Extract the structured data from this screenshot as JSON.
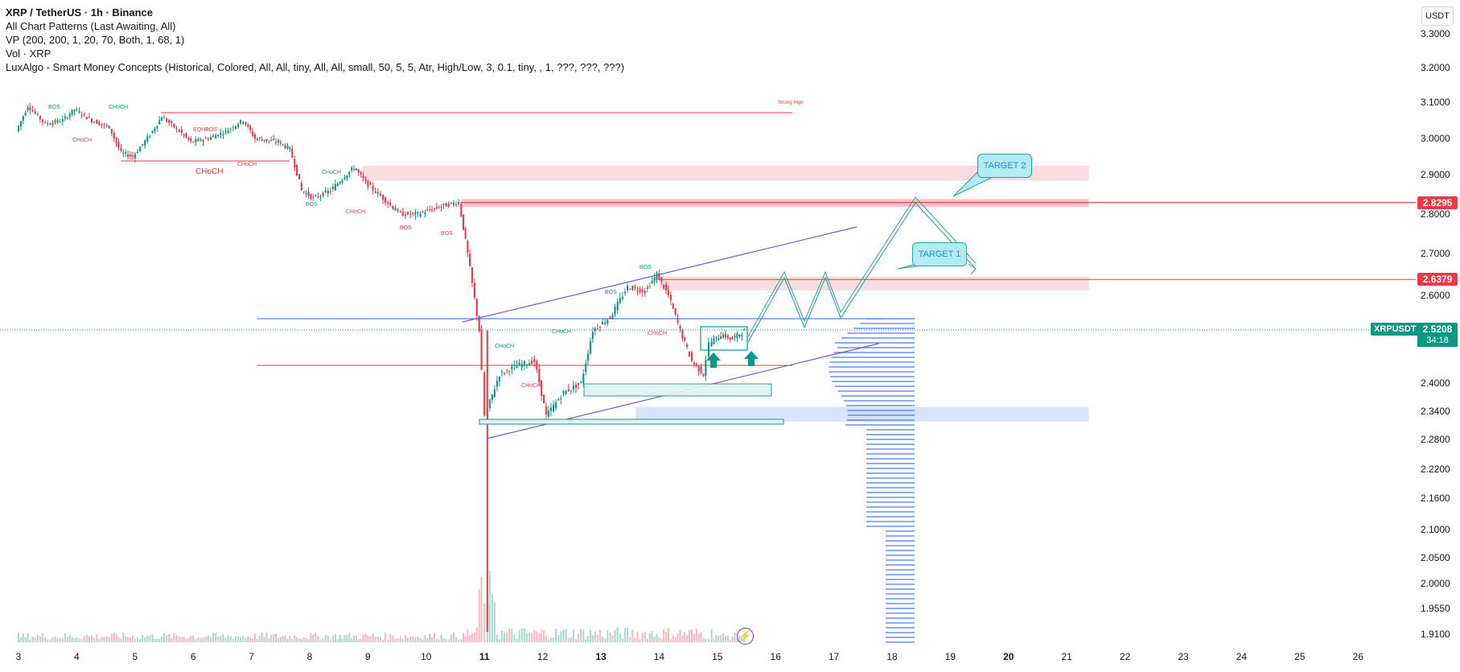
{
  "legend": {
    "title": "XRP / TetherUS · 1h · Binance",
    "line2": "All Chart Patterns (Last Awaiting, All)",
    "line3": "VP (200, 200, 1, 20, 70, Both, 1, 68, 1)",
    "line4": "Vol · XRP",
    "line5": "LuxAlgo - Smart Money Concepts (Historical, Colored, All, All, tiny, All, All, small, 50, 5, 5, Atr, High/Low, 3, 0.1, tiny, , 1, ???, ???, ???)"
  },
  "currency_button": "USDT",
  "tags": {
    "target2_price": "2.8295",
    "target1_price": "2.6379",
    "symbol": "XRPUSDT",
    "last_price": "2.5208",
    "countdown": "34:18"
  },
  "targets": {
    "t1": "TARGET 1",
    "t2": "TARGET 2"
  },
  "smc_labels": {
    "bos": "BOS",
    "choch": "CHoCH",
    "eqh_bos": "EQHBOS",
    "strong_high": "Strong High",
    "choch_big": "CHoCH"
  },
  "lightning_icon": "lightning-icon",
  "colors": {
    "up": "#089981",
    "down": "#f23645",
    "zone_red": "#f8d7da",
    "zone_blue": "#cfe0fb",
    "vp_blue": "#2962ff",
    "pattern_purple": "#7e57c2",
    "projection": "#26a69a"
  },
  "chart_data": {
    "type": "candlestick",
    "symbol": "XRPUSDT",
    "timeframe": "1h",
    "y_axis_ticks": [
      "3.3000",
      "3.2000",
      "3.1000",
      "3.0000",
      "2.9000",
      "2.8000",
      "2.7000",
      "2.6000",
      "2.4000",
      "2.3400",
      "2.2800",
      "2.2200",
      "2.1600",
      "2.1000",
      "2.0500",
      "2.0000",
      "1.9550",
      "1.9100"
    ],
    "x_axis_ticks": [
      "3",
      "4",
      "5",
      "6",
      "7",
      "8",
      "9",
      "10",
      "11",
      "12",
      "13",
      "14",
      "15",
      "16",
      "17",
      "18",
      "19",
      "20",
      "21",
      "22",
      "23",
      "24",
      "25",
      "26"
    ],
    "price_path": [
      [
        3,
        3.02
      ],
      [
        3.2,
        3.09
      ],
      [
        3.5,
        3.04
      ],
      [
        3.8,
        3.05
      ],
      [
        4.0,
        3.08
      ],
      [
        4.3,
        3.05
      ],
      [
        4.6,
        3.03
      ],
      [
        4.8,
        2.96
      ],
      [
        5.0,
        2.95
      ],
      [
        5.3,
        3.01
      ],
      [
        5.5,
        3.06
      ],
      [
        5.8,
        3.02
      ],
      [
        6.0,
        2.99
      ],
      [
        6.3,
        3.0
      ],
      [
        6.6,
        3.02
      ],
      [
        6.9,
        3.05
      ],
      [
        7.1,
        3.0
      ],
      [
        7.5,
        2.99
      ],
      [
        7.7,
        2.97
      ],
      [
        7.9,
        2.86
      ],
      [
        8.1,
        2.84
      ],
      [
        8.4,
        2.86
      ],
      [
        8.8,
        2.92
      ],
      [
        9.0,
        2.88
      ],
      [
        9.3,
        2.84
      ],
      [
        9.6,
        2.8
      ],
      [
        9.9,
        2.8
      ],
      [
        10.3,
        2.82
      ],
      [
        10.6,
        2.83
      ],
      [
        10.75,
        2.7
      ],
      [
        10.95,
        2.52
      ],
      [
        11.05,
        2.33
      ],
      [
        11.3,
        2.42
      ],
      [
        11.6,
        2.44
      ],
      [
        11.9,
        2.45
      ],
      [
        12.1,
        2.33
      ],
      [
        12.4,
        2.38
      ],
      [
        12.7,
        2.4
      ],
      [
        12.9,
        2.52
      ],
      [
        13.2,
        2.55
      ],
      [
        13.5,
        2.62
      ],
      [
        13.8,
        2.61
      ],
      [
        14.0,
        2.65
      ],
      [
        14.2,
        2.6
      ],
      [
        14.4,
        2.52
      ],
      [
        14.6,
        2.45
      ],
      [
        14.8,
        2.42
      ],
      [
        14.9,
        2.49
      ],
      [
        15.1,
        2.51
      ],
      [
        15.3,
        2.5
      ],
      [
        15.5,
        2.52
      ]
    ],
    "levels": {
      "target_2": 2.8295,
      "target_1": 2.6379,
      "last": 2.5208
    }
  }
}
